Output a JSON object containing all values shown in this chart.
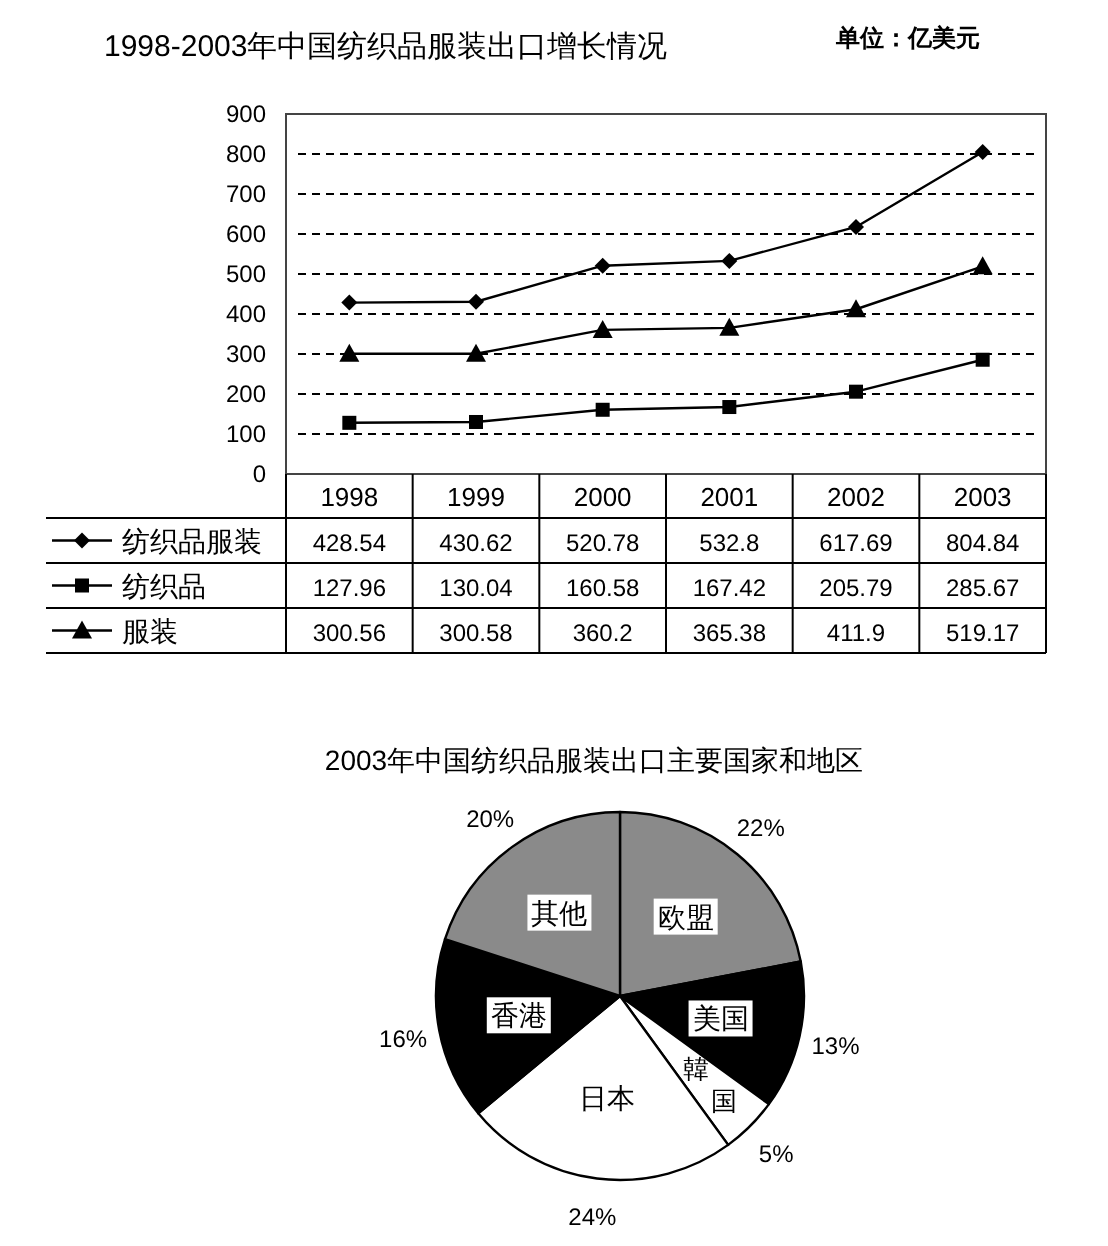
{
  "chart_data": [
    {
      "type": "line",
      "title": "1998-2003年中国纺织品服装出口增长情况",
      "annotations": [
        "单位：亿美元"
      ],
      "categories": [
        "1998",
        "1999",
        "2000",
        "2001",
        "2002",
        "2003"
      ],
      "series": [
        {
          "name": "纺织品服装",
          "color": "#000000",
          "marker": "diamond",
          "values": [
            428.54,
            430.62,
            520.78,
            532.8,
            617.69,
            804.84
          ]
        },
        {
          "name": "纺织品",
          "color": "#000000",
          "marker": "square",
          "values": [
            127.96,
            130.04,
            160.58,
            167.42,
            205.79,
            285.67
          ]
        },
        {
          "name": "服装",
          "color": "#000000",
          "marker": "triangle",
          "values": [
            300.56,
            300.58,
            360.2,
            365.38,
            411.9,
            519.17
          ]
        }
      ],
      "ylim": [
        0,
        900
      ],
      "yticks": [
        0,
        100,
        200,
        300,
        400,
        500,
        600,
        700,
        800,
        900
      ],
      "grid": "y",
      "legend": "bottom",
      "data_labels": true
    },
    {
      "type": "pie",
      "title": "2003年中国纺织品服装出口主要国家和地区",
      "categories": [
        "欧盟",
        "美国",
        "韓国",
        "日本",
        "香港",
        "其他"
      ],
      "values": [
        22,
        13,
        5,
        24,
        16,
        20
      ],
      "colors": [
        "#8a8a8a",
        "#000000",
        "#ffffff",
        "#ffffff",
        "#000000",
        "#8a8a8a"
      ],
      "value_labels": [
        "22%",
        "13%",
        "5%",
        "24%",
        "16%",
        "20%"
      ]
    }
  ]
}
